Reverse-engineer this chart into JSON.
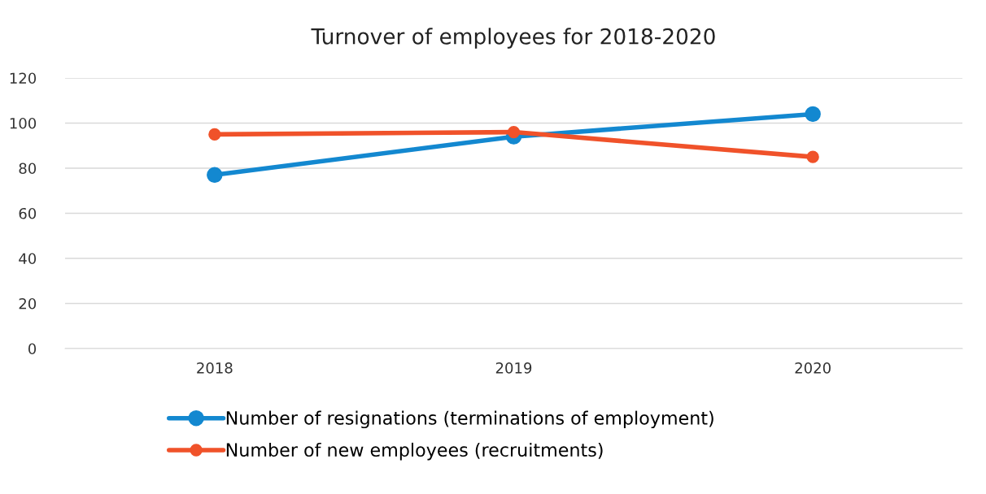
{
  "chart_data": {
    "type": "line",
    "title": "Turnover of employees for 2018-2020",
    "categories": [
      "2018",
      "2019",
      "2020"
    ],
    "series": [
      {
        "name": "Number of resignations (terminations of employment)",
        "color": "#1388d0",
        "values": [
          77,
          94,
          104
        ]
      },
      {
        "name": "Number of new employees (recruitments)",
        "color": "#f0522a",
        "values": [
          95,
          96,
          85
        ]
      }
    ],
    "ylim": [
      0,
      120
    ],
    "yticks": [
      0,
      20,
      40,
      60,
      80,
      100,
      120
    ],
    "grid": "y",
    "legend": "bottom",
    "marker": "circle",
    "line_style": "solid"
  }
}
